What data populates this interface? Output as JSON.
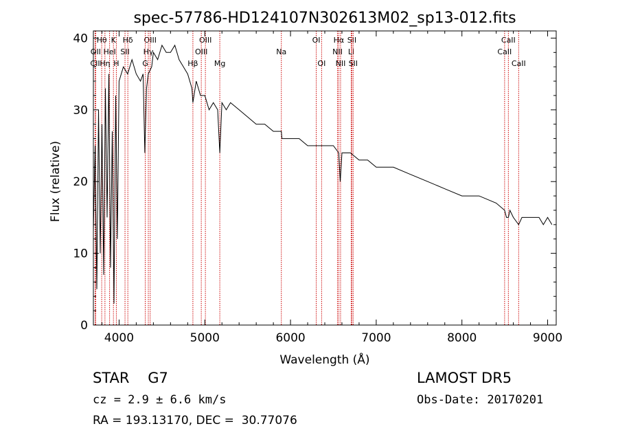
{
  "chart_data": {
    "type": "line",
    "title": "spec-57786-HD124107N302613M02_sp13-012.fits",
    "xlabel": "Wavelength (Å)",
    "ylabel": "Flux (relative)",
    "xlim": [
      3700,
      9100
    ],
    "ylim": [
      0,
      41
    ],
    "x_ticks": [
      4000,
      5000,
      6000,
      7000,
      8000,
      9000
    ],
    "y_ticks": [
      0,
      10,
      20,
      30,
      40
    ],
    "grid": false,
    "series": [
      {
        "x": [
          3700,
          3720,
          3740,
          3760,
          3780,
          3800,
          3820,
          3840,
          3860,
          3880,
          3900,
          3920,
          3940,
          3960,
          3980,
          4000,
          4050,
          4100,
          4150,
          4200,
          4250,
          4280,
          4300,
          4320,
          4340,
          4380,
          4400,
          4450,
          4500,
          4550,
          4600,
          4650,
          4700,
          4750,
          4800,
          4850,
          4861,
          4900,
          4950,
          5000,
          5050,
          5100,
          5150,
          5175,
          5200,
          5250,
          5300,
          5400,
          5500,
          5600,
          5700,
          5800,
          5893,
          5900,
          6000,
          6100,
          6200,
          6300,
          6400,
          6500,
          6563,
          6580,
          6600,
          6700,
          6800,
          6900,
          7000,
          7200,
          7400,
          7600,
          7800,
          8000,
          8200,
          8400,
          8498,
          8520,
          8542,
          8560,
          8600,
          8662,
          8700,
          8800,
          8900,
          8950,
          9000,
          9050
        ],
        "y": [
          13,
          25,
          5,
          30,
          10,
          28,
          7,
          33,
          15,
          35,
          8,
          27,
          3,
          32,
          12,
          34,
          36,
          35,
          37,
          35,
          34,
          35,
          24,
          33,
          35,
          36,
          38,
          37,
          39,
          38,
          38,
          39,
          37,
          36,
          35,
          33,
          31,
          34,
          32,
          32,
          30,
          31,
          30,
          24,
          31,
          30,
          31,
          30,
          29,
          28,
          28,
          27,
          27,
          26,
          26,
          26,
          25,
          25,
          25,
          25,
          24,
          20,
          24,
          24,
          23,
          23,
          22,
          22,
          21,
          20,
          19,
          18,
          18,
          17,
          16,
          15,
          15,
          16,
          15,
          14,
          15,
          15,
          15,
          14,
          15,
          14
        ]
      }
    ],
    "line_markers": [
      {
        "label": "Hθ",
        "wavelength": 3797,
        "row": 0
      },
      {
        "label": "OII",
        "wavelength": 3727,
        "row": 1
      },
      {
        "label": "CII",
        "wavelength": 3720,
        "row": 2
      },
      {
        "label": "K",
        "wavelength": 3934,
        "row": 0
      },
      {
        "label": "HeI",
        "wavelength": 3889,
        "row": 1
      },
      {
        "label": "Hη",
        "wavelength": 3835,
        "row": 2
      },
      {
        "label": "SII",
        "wavelength": 4069,
        "row": 1
      },
      {
        "label": "H",
        "wavelength": 3968,
        "row": 2
      },
      {
        "label": "Hδ",
        "wavelength": 4102,
        "row": 0
      },
      {
        "label": "OIII",
        "wavelength": 4363,
        "row": 0
      },
      {
        "label": "Hγ",
        "wavelength": 4341,
        "row": 1
      },
      {
        "label": "G",
        "wavelength": 4305,
        "row": 2
      },
      {
        "label": "OIII",
        "wavelength": 5007,
        "row": 0
      },
      {
        "label": "OIII",
        "wavelength": 4959,
        "row": 1
      },
      {
        "label": "Hβ",
        "wavelength": 4861,
        "row": 2
      },
      {
        "label": "Mg",
        "wavelength": 5175,
        "row": 2
      },
      {
        "label": "Na",
        "wavelength": 5893,
        "row": 1
      },
      {
        "label": "OI",
        "wavelength": 6300,
        "row": 0
      },
      {
        "label": "OI",
        "wavelength": 6363,
        "row": 2
      },
      {
        "label": "Hα",
        "wavelength": 6563,
        "row": 0
      },
      {
        "label": "SII",
        "wavelength": 6716,
        "row": 0
      },
      {
        "label": "NII",
        "wavelength": 6548,
        "row": 1
      },
      {
        "label": "Li",
        "wavelength": 6708,
        "row": 1
      },
      {
        "label": "NII",
        "wavelength": 6584,
        "row": 2
      },
      {
        "label": "SII",
        "wavelength": 6731,
        "row": 2
      },
      {
        "label": "CaII",
        "wavelength": 8542,
        "row": 0
      },
      {
        "label": "CaII",
        "wavelength": 8498,
        "row": 1
      },
      {
        "label": "CaII",
        "wavelength": 8662,
        "row": 2
      }
    ]
  },
  "info": {
    "class_label": "STAR",
    "subclass": "G7",
    "survey": "LAMOST DR5",
    "cz": "cz = 2.9 ± 6.6 km/s",
    "obs_date": "Obs-Date: 20170201",
    "radec": "RA = 193.13170, DEC =  30.77076"
  },
  "colors": {
    "spectrum": "#000000",
    "line_marker": "#cc0000",
    "background": "#ffffff"
  }
}
